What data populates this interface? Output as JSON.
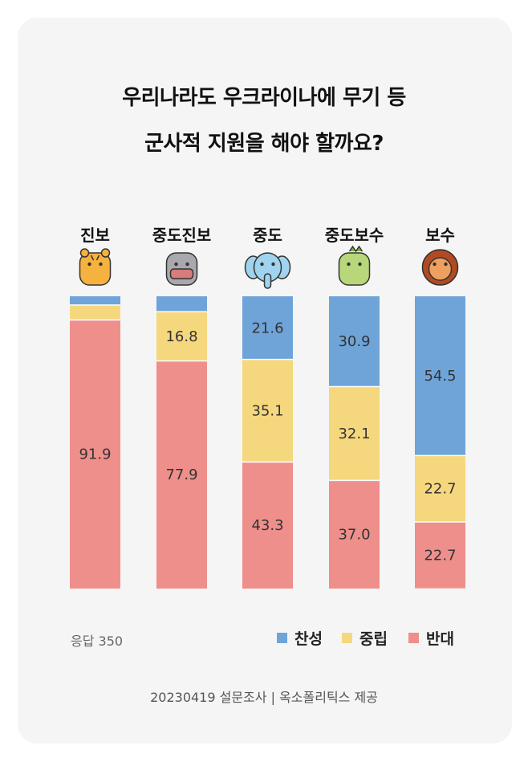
{
  "title_line1": "우리나라도 우크라이나에 무기 등",
  "title_line2": "군사적 지원을 해야 할까요?",
  "response_count": "응답 350",
  "source": "20230419 설문조사 | 옥소폴리틱스 제공",
  "colors": {
    "favor": "#6fa4d9",
    "neutral": "#f5d77e",
    "oppose": "#ee8f8c"
  },
  "icons": [
    "tiger-icon",
    "hippo-icon",
    "elephant-icon",
    "dinosaur-icon",
    "lion-icon"
  ],
  "chart_data": {
    "type": "bar",
    "stacked": true,
    "orientation": "vertical",
    "categories": [
      "진보",
      "중도진보",
      "중도",
      "중도보수",
      "보수"
    ],
    "series": [
      {
        "name": "찬성",
        "values": [
          3.0,
          5.3,
          21.6,
          30.9,
          54.5
        ],
        "labels": [
          "",
          "",
          "21.6",
          "30.9",
          "54.5"
        ]
      },
      {
        "name": "중립",
        "values": [
          5.1,
          16.8,
          35.1,
          32.1,
          22.7
        ],
        "labels": [
          "",
          "16.8",
          "35.1",
          "32.1",
          "22.7"
        ]
      },
      {
        "name": "반대",
        "values": [
          91.9,
          77.9,
          43.3,
          37.0,
          22.7
        ],
        "labels": [
          "91.9",
          "77.9",
          "43.3",
          "37.0",
          "22.7"
        ]
      }
    ],
    "ylim": [
      0,
      100
    ],
    "legend_position": "bottom-right"
  }
}
